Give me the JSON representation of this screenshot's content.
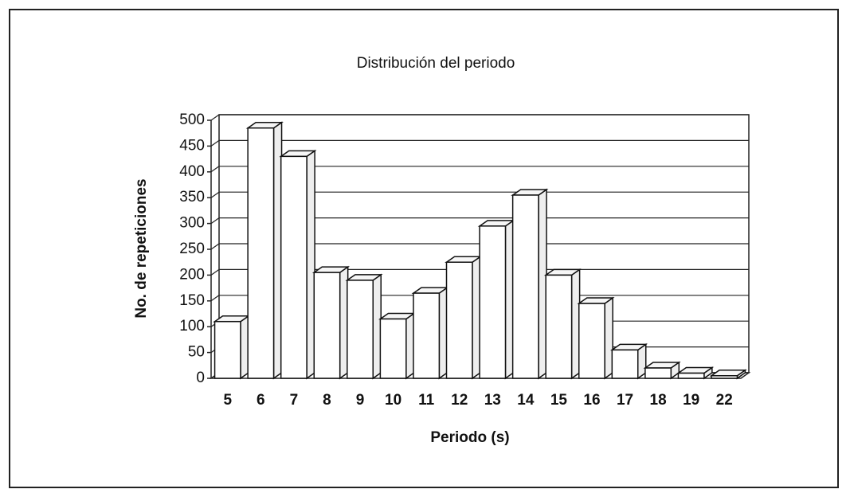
{
  "chart_data": {
    "type": "bar3d",
    "title": "Distribución del periodo",
    "x_label": "Periodo (s)",
    "y_label": "No. de repeticiones",
    "categories": [
      "5",
      "6",
      "7",
      "8",
      "9",
      "10",
      "11",
      "12",
      "13",
      "14",
      "15",
      "16",
      "17",
      "18",
      "19",
      "22"
    ],
    "values": [
      110,
      485,
      430,
      205,
      190,
      115,
      165,
      225,
      295,
      355,
      200,
      145,
      55,
      20,
      10,
      5
    ],
    "color": "#ffffff",
    "ylim": [
      0,
      500
    ],
    "yticks": [
      0,
      50,
      100,
      150,
      200,
      250,
      300,
      350,
      400,
      450,
      500
    ],
    "grid": true
  }
}
